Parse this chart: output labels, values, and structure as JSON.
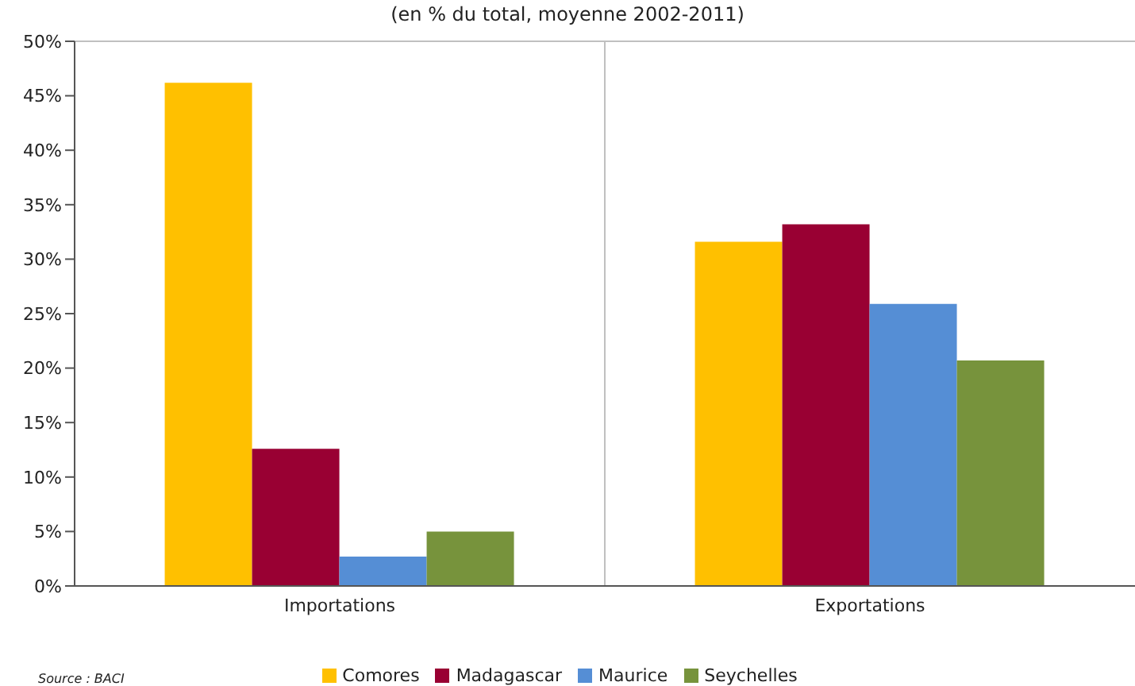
{
  "chart_data": {
    "type": "bar",
    "title": "(en % du total, moyenne 2002-2011)",
    "categories": [
      "Importations",
      "Exportations"
    ],
    "series": [
      {
        "name": "Comores",
        "color": "#ffc000",
        "values": [
          46.2,
          31.6
        ]
      },
      {
        "name": "Madagascar",
        "color": "#990033",
        "values": [
          12.6,
          33.2
        ]
      },
      {
        "name": "Maurice",
        "color": "#558ed5",
        "values": [
          2.7,
          25.9
        ]
      },
      {
        "name": "Seychelles",
        "color": "#77933c",
        "values": [
          5.0,
          20.7
        ]
      }
    ],
    "ylim": [
      0,
      50
    ],
    "yticks": [
      {
        "value": 0,
        "label": "0%"
      },
      {
        "value": 5,
        "label": "5%"
      },
      {
        "value": 10,
        "label": "10%"
      },
      {
        "value": 15,
        "label": "15%"
      },
      {
        "value": 20,
        "label": "20%"
      },
      {
        "value": 25,
        "label": "25%"
      },
      {
        "value": 30,
        "label": "30%"
      },
      {
        "value": 35,
        "label": "35%"
      },
      {
        "value": 40,
        "label": "40%"
      },
      {
        "value": 45,
        "label": "45%"
      },
      {
        "value": 50,
        "label": "50%"
      }
    ],
    "grid": true,
    "legend": "bottom",
    "annotations": [
      "Source : BACI"
    ]
  }
}
